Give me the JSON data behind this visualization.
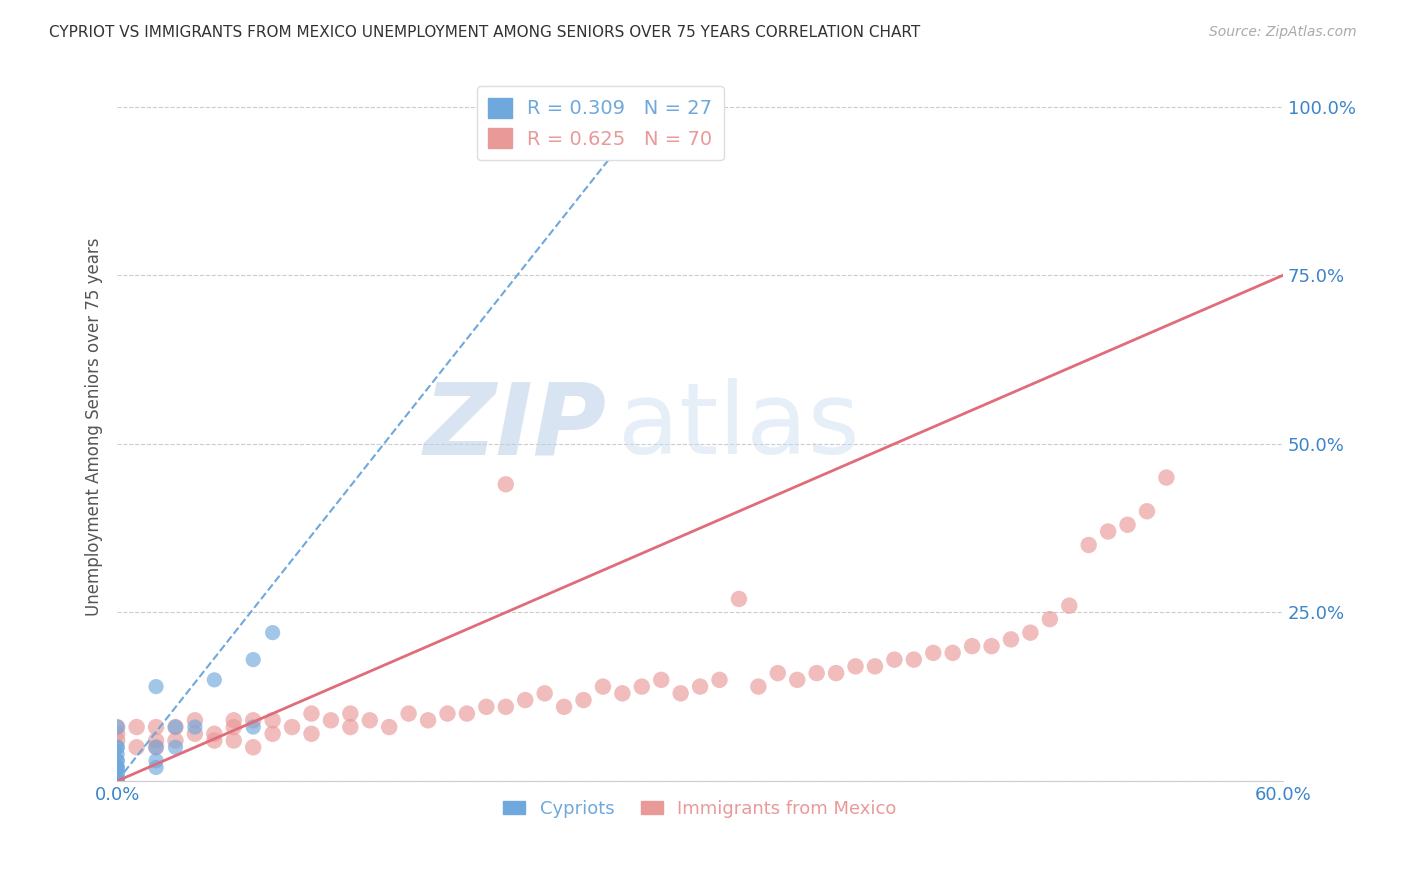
{
  "title": "CYPRIOT VS IMMIGRANTS FROM MEXICO UNEMPLOYMENT AMONG SENIORS OVER 75 YEARS CORRELATION CHART",
  "source": "Source: ZipAtlas.com",
  "ylabel": "Unemployment Among Seniors over 75 years",
  "xlim": [
    0.0,
    0.6
  ],
  "ylim": [
    0.0,
    1.05
  ],
  "xticks": [
    0.0,
    0.1,
    0.2,
    0.3,
    0.4,
    0.5,
    0.6
  ],
  "xticklabels": [
    "0.0%",
    "",
    "",
    "",
    "",
    "",
    "60.0%"
  ],
  "yticks": [
    0.0,
    0.25,
    0.5,
    0.75,
    1.0
  ],
  "yticklabels": [
    "",
    "25.0%",
    "50.0%",
    "75.0%",
    "100.0%"
  ],
  "blue_R": 0.309,
  "blue_N": 27,
  "pink_R": 0.625,
  "pink_N": 70,
  "blue_color": "#6fa8dc",
  "pink_color": "#ea9999",
  "blue_line_color": "#6fa8dc",
  "pink_line_color": "#e06c7a",
  "legend_label_blue": "Cypriots",
  "legend_label_pink": "Immigrants from Mexico",
  "watermark_zip": "ZIP",
  "watermark_atlas": "atlas",
  "blue_scatter_x": [
    0.0,
    0.0,
    0.0,
    0.0,
    0.0,
    0.0,
    0.0,
    0.0,
    0.0,
    0.0,
    0.0,
    0.0,
    0.0,
    0.0,
    0.0,
    0.0,
    0.02,
    0.02,
    0.02,
    0.02,
    0.03,
    0.03,
    0.04,
    0.05,
    0.07,
    0.07,
    0.08
  ],
  "blue_scatter_y": [
    0.0,
    0.0,
    0.0,
    0.0,
    0.0,
    0.01,
    0.01,
    0.02,
    0.02,
    0.02,
    0.03,
    0.03,
    0.04,
    0.05,
    0.05,
    0.08,
    0.02,
    0.03,
    0.05,
    0.14,
    0.05,
    0.08,
    0.08,
    0.15,
    0.08,
    0.18,
    0.22
  ],
  "pink_scatter_x": [
    0.0,
    0.0,
    0.0,
    0.01,
    0.01,
    0.02,
    0.02,
    0.02,
    0.03,
    0.03,
    0.04,
    0.04,
    0.05,
    0.05,
    0.06,
    0.06,
    0.06,
    0.07,
    0.07,
    0.08,
    0.08,
    0.09,
    0.1,
    0.1,
    0.11,
    0.12,
    0.12,
    0.13,
    0.14,
    0.15,
    0.16,
    0.17,
    0.18,
    0.19,
    0.2,
    0.2,
    0.21,
    0.22,
    0.23,
    0.24,
    0.25,
    0.26,
    0.27,
    0.28,
    0.29,
    0.3,
    0.31,
    0.32,
    0.33,
    0.34,
    0.35,
    0.36,
    0.37,
    0.38,
    0.39,
    0.4,
    0.41,
    0.42,
    0.43,
    0.44,
    0.45,
    0.46,
    0.47,
    0.48,
    0.49,
    0.5,
    0.51,
    0.52,
    0.53,
    0.54
  ],
  "pink_scatter_y": [
    0.06,
    0.07,
    0.08,
    0.05,
    0.08,
    0.05,
    0.08,
    0.06,
    0.06,
    0.08,
    0.07,
    0.09,
    0.06,
    0.07,
    0.06,
    0.08,
    0.09,
    0.05,
    0.09,
    0.07,
    0.09,
    0.08,
    0.1,
    0.07,
    0.09,
    0.08,
    0.1,
    0.09,
    0.08,
    0.1,
    0.09,
    0.1,
    0.1,
    0.11,
    0.11,
    0.44,
    0.12,
    0.13,
    0.11,
    0.12,
    0.14,
    0.13,
    0.14,
    0.15,
    0.13,
    0.14,
    0.15,
    0.27,
    0.14,
    0.16,
    0.15,
    0.16,
    0.16,
    0.17,
    0.17,
    0.18,
    0.18,
    0.19,
    0.19,
    0.2,
    0.2,
    0.21,
    0.22,
    0.24,
    0.26,
    0.35,
    0.37,
    0.38,
    0.4,
    0.45
  ],
  "blue_regline_x": [
    0.0,
    0.28
  ],
  "blue_regline_y": [
    0.0,
    1.02
  ],
  "pink_regline_x": [
    0.0,
    0.6
  ],
  "pink_regline_y": [
    0.0,
    0.75
  ]
}
